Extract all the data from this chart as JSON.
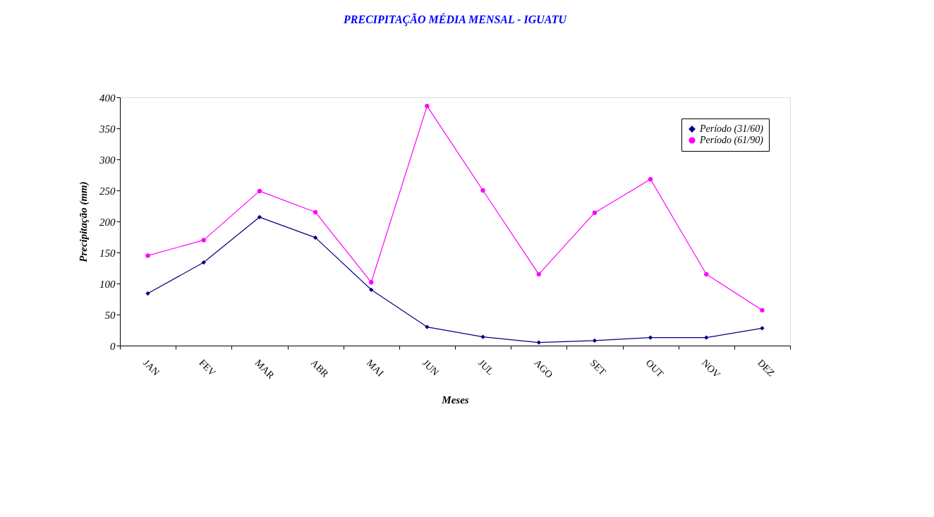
{
  "chart_data": {
    "type": "line",
    "title": "PRECIPITAÇÃO MÉDIA MENSAL - IGUATU",
    "xlabel": "Meses",
    "ylabel": "Precipitação (mm)",
    "categories": [
      "JAN",
      "FEV",
      "MAR",
      "ABR",
      "MAI",
      "JUN",
      "JUL",
      "AGO",
      "SET",
      "OUT",
      "NOV",
      "DEZ"
    ],
    "series": [
      {
        "name": "Período (31/60)",
        "color": "#000080",
        "marker": "diamond",
        "values": [
          84,
          134,
          207,
          174,
          90,
          30,
          14,
          5,
          8,
          13,
          13,
          28
        ]
      },
      {
        "name": "Período (61/90)",
        "color": "#ff00ff",
        "marker": "circle",
        "values": [
          145,
          170,
          249,
          215,
          102,
          386,
          250,
          115,
          214,
          268,
          115,
          57
        ]
      }
    ],
    "ylim": [
      0,
      400
    ],
    "yticks": [
      0,
      50,
      100,
      150,
      200,
      250,
      300,
      350,
      400
    ],
    "grid": false,
    "legend": "top right",
    "line_style": "solid"
  }
}
